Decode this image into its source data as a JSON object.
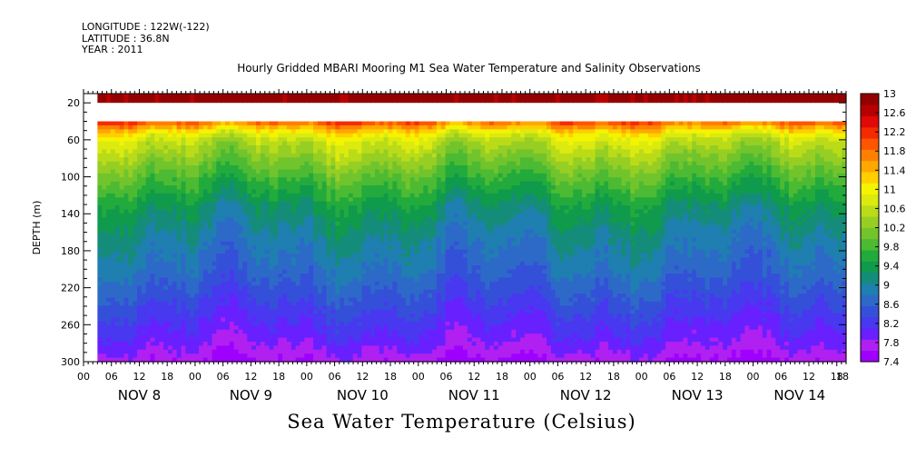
{
  "metadata": {
    "longitude": "LONGITUDE : 122W(-122)",
    "latitude": "LATITUDE : 36.8N",
    "year": "YEAR : 2011"
  },
  "chart_data": {
    "type": "heatmap",
    "title": "Hourly Gridded MBARI Mooring M1 Sea Water Temperature and Salinity Observations",
    "xlabel": "Sea Water Temperature (Celsius)",
    "ylabel": "DEPTH (m)",
    "y_range": [
      10,
      300
    ],
    "y_ticks": [
      20,
      60,
      100,
      140,
      180,
      220,
      260,
      300
    ],
    "x_hour_range": [
      0,
      164
    ],
    "x_hour_ticks": [
      "00",
      "06",
      "12",
      "18",
      "00",
      "06",
      "12",
      "18",
      "00",
      "06",
      "12",
      "18",
      "00",
      "06",
      "12",
      "18",
      "00",
      "06",
      "12",
      "18",
      "00",
      "06",
      "12",
      "18",
      "00",
      "06",
      "12",
      "18",
      "18"
    ],
    "x_day_labels": [
      {
        "label": "NOV  8",
        "hour": 12
      },
      {
        "label": "NOV  9",
        "hour": 36
      },
      {
        "label": "NOV 10",
        "hour": 60
      },
      {
        "label": "NOV 11",
        "hour": 84
      },
      {
        "label": "NOV 12",
        "hour": 108
      },
      {
        "label": "NOV 13",
        "hour": 132
      },
      {
        "label": "NOV 14",
        "hour": 154
      }
    ],
    "data_start_hour": 3,
    "surface_band_depth": [
      10,
      20
    ],
    "no_data_depth": [
      20,
      40
    ],
    "profile_depths": [
      10,
      20,
      40,
      50,
      60,
      80,
      100,
      130,
      160,
      200,
      240,
      280,
      300
    ],
    "profile_temps_c": [
      12.9,
      12.8,
      11.8,
      11.0,
      10.6,
      10.2,
      9.8,
      9.3,
      9.0,
      8.7,
      8.3,
      7.9,
      7.6
    ],
    "colorbar_labels": [
      "13",
      "12.6",
      "12.2",
      "11.8",
      "11.4",
      "11",
      "10.6",
      "10.2",
      "9.8",
      "9.4",
      "9",
      "8.6",
      "8.2",
      "7.8",
      "7.4"
    ],
    "colorbar_min": 7.4,
    "colorbar_max": 13.0,
    "colors": [
      "#9f00ff",
      "#b020f0",
      "#6820ff",
      "#4838f0",
      "#3550d8",
      "#2d6ac8",
      "#1e7fb0",
      "#158c7a",
      "#109a4c",
      "#22aa3c",
      "#4cba32",
      "#72c42c",
      "#96ce24",
      "#badc18",
      "#dcea10",
      "#f4f400",
      "#ffcf00",
      "#ffa800",
      "#ff8000",
      "#ff5500",
      "#f42a00",
      "#e00808",
      "#b80000",
      "#940000"
    ]
  }
}
